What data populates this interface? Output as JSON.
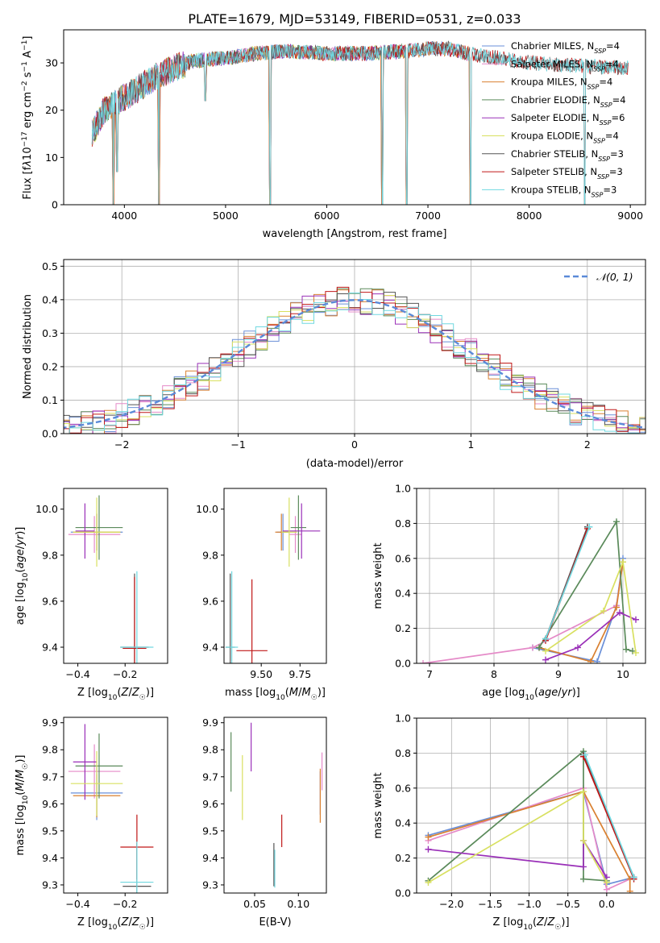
{
  "figure": {
    "title": "PLATE=1679, MJD=53149, FIBERID=0531, z=0.033"
  },
  "colors": {
    "Chabrier MILES": "#6a8fd8",
    "Salpeter MILES": "#e58ac8",
    "Kroupa MILES": "#d98030",
    "Chabrier ELODIE": "#5a8a5a",
    "Salpeter ELODIE": "#9a30b8",
    "Kroupa ELODIE": "#d8e060",
    "Chabrier STELIB": "#555555",
    "Salpeter STELIB": "#c01818",
    "Kroupa STELIB": "#70d8e0"
  },
  "chart_data": [
    {
      "id": "spectrum",
      "type": "line",
      "title": "PLATE=1679, MJD=53149, FIBERID=0531, z=0.033",
      "xlabel": "wavelength [Angstrom, rest frame]",
      "ylabel": "Flux [f_λ10^{-17} erg cm^{-2} s^{-1} A^{-1}]",
      "xlim": [
        3400,
        9150
      ],
      "ylim": [
        0,
        37
      ],
      "xticks": [
        4000,
        5000,
        6000,
        7000,
        8000,
        9000
      ],
      "yticks": [
        0,
        10,
        20,
        30
      ],
      "grid": false,
      "legend_position": "top-right",
      "legend": [
        {
          "name": "Chabrier MILES",
          "nssp": "4"
        },
        {
          "name": "Salpeter MILES",
          "nssp": "4"
        },
        {
          "name": "Kroupa MILES",
          "nssp": "4"
        },
        {
          "name": "Chabrier ELODIE",
          "nssp": "4"
        },
        {
          "name": "Salpeter ELODIE",
          "nssp": "6"
        },
        {
          "name": "Kroupa ELODIE",
          "nssp": "4"
        },
        {
          "name": "Chabrier STELIB",
          "nssp": "3"
        },
        {
          "name": "Salpeter STELIB",
          "nssp": "3"
        },
        {
          "name": "Kroupa STELIB",
          "nssp": "3"
        }
      ],
      "continuum": {
        "x": [
          3680,
          3800,
          3950,
          4100,
          4300,
          4500,
          4700,
          5000,
          5300,
          5600,
          6000,
          6400,
          6800,
          7000,
          7200,
          7400,
          7700,
          8000,
          8400,
          8800,
          8980
        ],
        "y": [
          15,
          20,
          22,
          24,
          27,
          29,
          30.5,
          31,
          32,
          32.5,
          32,
          32,
          32.5,
          33,
          33,
          32,
          31,
          30,
          29.5,
          29,
          29
        ]
      },
      "features": [
        {
          "x": 3890,
          "y": 0
        },
        {
          "x": 3930,
          "y": 7
        },
        {
          "x": 4340,
          "y": 0
        },
        {
          "x": 4800,
          "y": 22
        },
        {
          "x": 5440,
          "y": 0
        },
        {
          "x": 6550,
          "y": 0
        },
        {
          "x": 6790,
          "y": 0
        },
        {
          "x": 7420,
          "y": 0
        },
        {
          "x": 8550,
          "y": 0
        }
      ]
    },
    {
      "id": "residuals",
      "type": "step",
      "xlabel": "(data-model)/error",
      "ylabel": "Normed distribution",
      "xlim": [
        -2.5,
        2.5
      ],
      "ylim": [
        0,
        0.52
      ],
      "xticks": [
        -2,
        -1,
        0,
        1,
        2
      ],
      "yticks": [
        0.0,
        0.1,
        0.2,
        0.3,
        0.4,
        0.5
      ],
      "grid": true,
      "legend_position": "top-right",
      "reference": {
        "name": "𝒩(0, 1)",
        "mu": 0,
        "sigma": 1
      },
      "bin_width": 0.1
    },
    {
      "id": "age_vs_z",
      "type": "errorbar",
      "xlabel": "Z [log10(Z/Z☉)]",
      "ylabel": "age [log10(age/yr)]",
      "xlim": [
        -0.46,
        -0.02
      ],
      "ylim": [
        9.33,
        10.09
      ],
      "xticks": [
        -0.4,
        -0.2
      ],
      "yticks": [
        9.4,
        9.6,
        9.8,
        10.0
      ],
      "points": [
        {
          "model": "Chabrier MILES",
          "x": -0.32,
          "y": 9.9,
          "xerr": 0.11,
          "yerr": 0.08
        },
        {
          "model": "Salpeter MILES",
          "x": -0.33,
          "y": 9.89,
          "xerr": 0.11,
          "yerr": 0.08
        },
        {
          "model": "Kroupa MILES",
          "x": -0.32,
          "y": 9.9,
          "xerr": 0.1,
          "yerr": 0.08
        },
        {
          "model": "Chabrier ELODIE",
          "x": -0.31,
          "y": 9.92,
          "xerr": 0.1,
          "yerr": 0.14
        },
        {
          "model": "Salpeter ELODIE",
          "x": -0.37,
          "y": 9.905,
          "xerr": 0.04,
          "yerr": 0.12
        },
        {
          "model": "Kroupa ELODIE",
          "x": -0.32,
          "y": 9.9,
          "xerr": 0.1,
          "yerr": 0.15
        },
        {
          "model": "Chabrier STELIB",
          "x": -0.16,
          "y": 9.4,
          "xerr": 0.06,
          "yerr": 0.32
        },
        {
          "model": "Salpeter STELIB",
          "x": -0.16,
          "y": 9.395,
          "xerr": 0.05,
          "yerr": 0.31
        },
        {
          "model": "Kroupa STELIB",
          "x": -0.15,
          "y": 9.4,
          "xerr": 0.07,
          "yerr": 0.33
        }
      ]
    },
    {
      "id": "age_vs_mass",
      "type": "errorbar",
      "xlabel": "mass [log10(M/M☉)]",
      "ylabel": "",
      "xlim": [
        9.26,
        9.92
      ],
      "ylim": [
        9.33,
        10.09
      ],
      "xticks": [
        9.5,
        9.75
      ],
      "yticks": [
        9.4,
        9.6,
        9.8,
        10.0
      ],
      "points": [
        {
          "model": "Chabrier MILES",
          "x": 9.64,
          "y": 9.9,
          "xerr": 0.04,
          "yerr": 0.08
        },
        {
          "model": "Salpeter MILES",
          "x": 9.72,
          "y": 9.89,
          "xerr": 0.04,
          "yerr": 0.08
        },
        {
          "model": "Kroupa MILES",
          "x": 9.63,
          "y": 9.9,
          "xerr": 0.04,
          "yerr": 0.08
        },
        {
          "model": "Chabrier ELODIE",
          "x": 9.74,
          "y": 9.92,
          "xerr": 0.05,
          "yerr": 0.14
        },
        {
          "model": "Salpeter ELODIE",
          "x": 9.76,
          "y": 9.905,
          "xerr": 0.12,
          "yerr": 0.12
        },
        {
          "model": "Kroupa ELODIE",
          "x": 9.68,
          "y": 9.9,
          "xerr": 0.05,
          "yerr": 0.15
        },
        {
          "model": "Chabrier STELIB",
          "x": 9.3,
          "y": 9.4,
          "xerr": 0.03,
          "yerr": 0.32
        },
        {
          "model": "Salpeter STELIB",
          "x": 9.44,
          "y": 9.385,
          "xerr": 0.1,
          "yerr": 0.31
        },
        {
          "model": "Kroupa STELIB",
          "x": 9.31,
          "y": 9.4,
          "xerr": 0.04,
          "yerr": 0.33
        }
      ]
    },
    {
      "id": "weight_vs_age",
      "type": "line",
      "xlabel": "age [log10(age/yr)]",
      "ylabel": "mass weight",
      "xlim": [
        6.8,
        10.35
      ],
      "ylim": [
        0,
        1.0
      ],
      "xticks": [
        7,
        8,
        9,
        10
      ],
      "yticks": [
        0.0,
        0.2,
        0.4,
        0.6,
        0.8,
        1.0
      ],
      "grid": true,
      "series": [
        {
          "model": "Chabrier MILES",
          "x": [
            8.6,
            9.6,
            9.9,
            10.0
          ],
          "y": [
            0.09,
            0.01,
            0.33,
            0.6
          ]
        },
        {
          "model": "Salpeter MILES",
          "x": [
            6.9,
            8.6,
            9.9,
            10.0
          ],
          "y": [
            0.0,
            0.09,
            0.33,
            0.58
          ]
        },
        {
          "model": "Kroupa MILES",
          "x": [
            8.7,
            9.5,
            9.9,
            10.0
          ],
          "y": [
            0.09,
            0.01,
            0.32,
            0.58
          ]
        },
        {
          "model": "Chabrier ELODIE",
          "x": [
            8.7,
            9.9,
            10.05,
            10.15
          ],
          "y": [
            0.09,
            0.81,
            0.08,
            0.07
          ]
        },
        {
          "model": "Salpeter ELODIE",
          "x": [
            8.8,
            9.3,
            9.95,
            10.2
          ],
          "y": [
            0.02,
            0.09,
            0.29,
            0.25
          ]
        },
        {
          "model": "Kroupa ELODIE",
          "x": [
            8.8,
            9.7,
            10.0,
            10.2
          ],
          "y": [
            0.07,
            0.3,
            0.58,
            0.06
          ]
        },
        {
          "model": "Chabrier STELIB",
          "x": [
            8.8,
            9.45
          ],
          "y": [
            0.14,
            0.78
          ]
        },
        {
          "model": "Salpeter STELIB",
          "x": [
            8.8,
            9.45
          ],
          "y": [
            0.13,
            0.77
          ]
        },
        {
          "model": "Kroupa STELIB",
          "x": [
            8.8,
            9.48
          ],
          "y": [
            0.14,
            0.78
          ]
        }
      ]
    },
    {
      "id": "mass_vs_z",
      "type": "errorbar",
      "xlabel": "Z [log10(Z/Z☉)]",
      "ylabel": "mass [log10(M/M☉)]",
      "xlim": [
        -0.46,
        -0.02
      ],
      "ylim": [
        9.27,
        9.92
      ],
      "xticks": [
        -0.4,
        -0.2
      ],
      "yticks": [
        9.3,
        9.4,
        9.5,
        9.6,
        9.7,
        9.8,
        9.9
      ],
      "points": [
        {
          "model": "Chabrier MILES",
          "x": -0.32,
          "y": 9.64,
          "xerr": 0.11,
          "yerr": 0.1
        },
        {
          "model": "Salpeter MILES",
          "x": -0.33,
          "y": 9.72,
          "xerr": 0.11,
          "yerr": 0.1
        },
        {
          "model": "Kroupa MILES",
          "x": -0.32,
          "y": 9.63,
          "xerr": 0.1,
          "yerr": 0.08
        },
        {
          "model": "Chabrier ELODIE",
          "x": -0.31,
          "y": 9.74,
          "xerr": 0.1,
          "yerr": 0.12
        },
        {
          "model": "Salpeter ELODIE",
          "x": -0.37,
          "y": 9.755,
          "xerr": 0.05,
          "yerr": 0.14
        },
        {
          "model": "Kroupa ELODIE",
          "x": -0.32,
          "y": 9.675,
          "xerr": 0.11,
          "yerr": 0.12
        },
        {
          "model": "Chabrier STELIB",
          "x": -0.15,
          "y": 9.295,
          "xerr": 0.06,
          "yerr": 0.16
        },
        {
          "model": "Salpeter STELIB",
          "x": -0.15,
          "y": 9.44,
          "xerr": 0.07,
          "yerr": 0.12
        },
        {
          "model": "Kroupa STELIB",
          "x": -0.15,
          "y": 9.31,
          "xerr": 0.07,
          "yerr": 0.15
        }
      ]
    },
    {
      "id": "mass_vs_ebv",
      "type": "errorbar",
      "xlabel": "E(B-V)",
      "ylabel": "",
      "xlim": [
        0.015,
        0.132
      ],
      "ylim": [
        9.27,
        9.92
      ],
      "xticks": [
        0.05,
        0.1
      ],
      "yticks": [
        9.3,
        9.4,
        9.5,
        9.6,
        9.7,
        9.8,
        9.9
      ],
      "points": [
        {
          "model": "Chabrier MILES",
          "x": 0.125,
          "y": 9.64,
          "xerr": 0.0,
          "yerr": 0.08
        },
        {
          "model": "Salpeter MILES",
          "x": 0.127,
          "y": 9.72,
          "xerr": 0.0,
          "yerr": 0.07
        },
        {
          "model": "Kroupa MILES",
          "x": 0.125,
          "y": 9.63,
          "xerr": 0.0,
          "yerr": 0.1
        },
        {
          "model": "Chabrier ELODIE",
          "x": 0.023,
          "y": 9.755,
          "xerr": 0.0,
          "yerr": 0.11
        },
        {
          "model": "Salpeter ELODIE",
          "x": 0.046,
          "y": 9.81,
          "xerr": 0.0,
          "yerr": 0.09
        },
        {
          "model": "Kroupa ELODIE",
          "x": 0.036,
          "y": 9.66,
          "xerr": 0.0,
          "yerr": 0.12
        },
        {
          "model": "Chabrier STELIB",
          "x": 0.072,
          "y": 9.375,
          "xerr": 0.0,
          "yerr": 0.08
        },
        {
          "model": "Salpeter STELIB",
          "x": 0.081,
          "y": 9.5,
          "xerr": 0.0,
          "yerr": 0.06
        },
        {
          "model": "Kroupa STELIB",
          "x": 0.073,
          "y": 9.36,
          "xerr": 0.0,
          "yerr": 0.07
        }
      ]
    },
    {
      "id": "weight_vs_z",
      "type": "line",
      "xlabel": "Z [log10(Z/Z☉)]",
      "ylabel": "mass weight",
      "xlim": [
        -2.45,
        0.5
      ],
      "ylim": [
        0,
        1.0
      ],
      "xticks": [
        -2.0,
        -1.5,
        -1.0,
        -0.5,
        0.0
      ],
      "yticks": [
        0.0,
        0.2,
        0.4,
        0.6,
        0.8,
        1.0
      ],
      "grid": true,
      "series": [
        {
          "model": "Chabrier MILES",
          "x": [
            -2.3,
            -0.3,
            0.0,
            0.35
          ],
          "y": [
            0.33,
            0.58,
            0.05,
            0.09
          ]
        },
        {
          "model": "Salpeter MILES",
          "x": [
            -2.3,
            -0.3,
            0.0,
            0.35
          ],
          "y": [
            0.3,
            0.6,
            0.02,
            0.09
          ]
        },
        {
          "model": "Kroupa MILES",
          "x": [
            -2.3,
            -0.3,
            0.3,
            0.3
          ],
          "y": [
            0.32,
            0.58,
            0.08,
            0.01
          ]
        },
        {
          "model": "Chabrier ELODIE",
          "x": [
            -2.3,
            -0.3,
            -0.3,
            0.0
          ],
          "y": [
            0.07,
            0.81,
            0.08,
            0.07
          ]
        },
        {
          "model": "Salpeter ELODIE",
          "x": [
            -2.3,
            -0.3,
            -0.3,
            0.0
          ],
          "y": [
            0.25,
            0.15,
            0.3,
            0.09
          ]
        },
        {
          "model": "Kroupa ELODIE",
          "x": [
            -2.3,
            -0.3,
            -0.3,
            0.0
          ],
          "y": [
            0.06,
            0.58,
            0.3,
            0.06
          ]
        },
        {
          "model": "Chabrier STELIB",
          "x": [
            -0.3,
            0.35
          ],
          "y": [
            0.79,
            0.09
          ]
        },
        {
          "model": "Salpeter STELIB",
          "x": [
            -0.3,
            0.35
          ],
          "y": [
            0.78,
            0.08
          ]
        },
        {
          "model": "Kroupa STELIB",
          "x": [
            -0.28,
            0.35
          ],
          "y": [
            0.79,
            0.09
          ]
        }
      ]
    }
  ]
}
